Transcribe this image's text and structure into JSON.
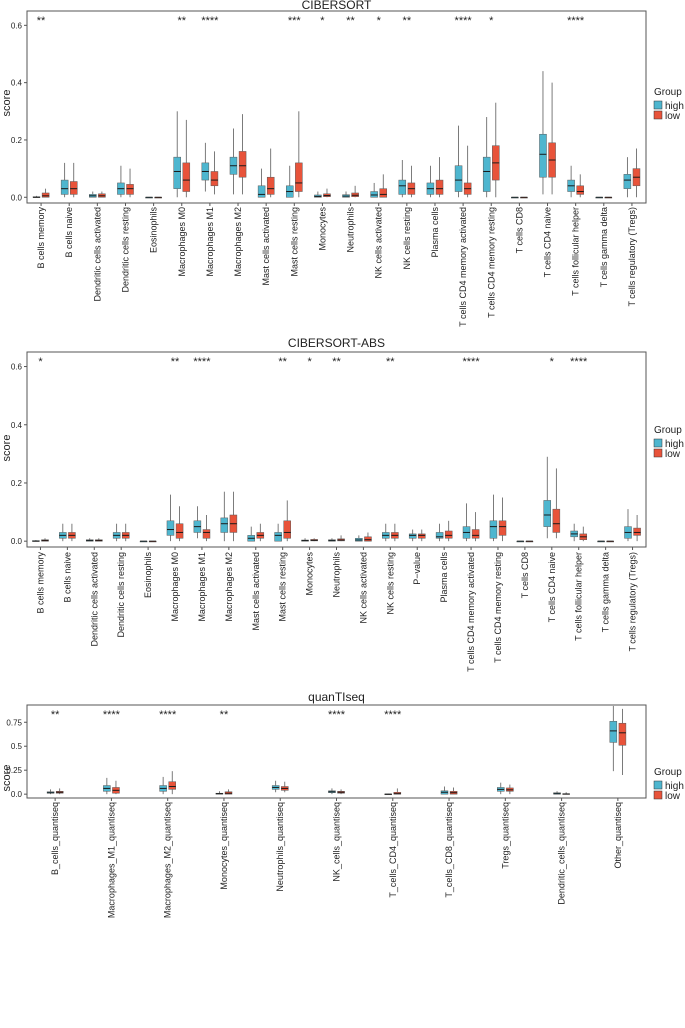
{
  "legend": {
    "title": "Group",
    "entries": [
      "high",
      "low"
    ]
  },
  "colors": {
    "high": "#4eb6cf",
    "low": "#e8533a",
    "whisker": "#5a5a5a",
    "median": "#1a1a1a",
    "frame": "#555555"
  },
  "chart_data": [
    {
      "type": "boxplot",
      "title": "CIBERSORT",
      "ylabel": "score",
      "yticks": [
        "0.0",
        "0.2",
        "0.4",
        "0.6"
      ],
      "ylim": [
        -0.02,
        0.65
      ],
      "categories": [
        "B cells memory",
        "B cells naive",
        "Dendritic cells activated",
        "Dendritic cells resting",
        "Eosinophils",
        "Macrophages M0",
        "Macrophages M1",
        "Macrophages M2",
        "Mast cells activated",
        "Mast cells resting",
        "Monocytes",
        "Neutrophils",
        "NK cells activated",
        "NK cells resting",
        "Plasma cells",
        "T cells CD4 memory activated",
        "T cells CD4 memory resting",
        "T cells CD8",
        "T cells CD4 naive",
        "T cells follicular helper",
        "T cells gamma delta",
        "T cells regulatory (Tregs)"
      ],
      "significance": [
        "**",
        "",
        "",
        "",
        "",
        "**",
        "****",
        "",
        "",
        "***",
        "*",
        "**",
        "*",
        "**",
        "",
        "****",
        "*",
        "",
        "",
        "****",
        "",
        ""
      ],
      "series": [
        {
          "name": "high",
          "boxes": [
            [
              0,
              0,
              0,
              0.002,
              0.005
            ],
            [
              0,
              0.01,
              0.03,
              0.06,
              0.12
            ],
            [
              0,
              0,
              0.005,
              0.01,
              0.02
            ],
            [
              0,
              0.01,
              0.03,
              0.05,
              0.11
            ],
            [
              0,
              0,
              0,
              0,
              0
            ],
            [
              0,
              0.03,
              0.09,
              0.14,
              0.3
            ],
            [
              0.02,
              0.06,
              0.09,
              0.12,
              0.19
            ],
            [
              0.01,
              0.08,
              0.11,
              0.14,
              0.24
            ],
            [
              0,
              0,
              0.01,
              0.04,
              0.1
            ],
            [
              0,
              0,
              0.02,
              0.04,
              0.11
            ],
            [
              0,
              0,
              0.003,
              0.008,
              0.02
            ],
            [
              0,
              0,
              0.004,
              0.009,
              0.02
            ],
            [
              0,
              0,
              0.008,
              0.02,
              0.05
            ],
            [
              0,
              0.01,
              0.04,
              0.06,
              0.13
            ],
            [
              0,
              0.01,
              0.03,
              0.05,
              0.11
            ],
            [
              0,
              0.02,
              0.06,
              0.11,
              0.25
            ],
            [
              0,
              0.02,
              0.09,
              0.14,
              0.28
            ],
            [
              0,
              0,
              0,
              0,
              0
            ],
            [
              0.01,
              0.07,
              0.15,
              0.22,
              0.44
            ],
            [
              0,
              0.02,
              0.04,
              0.06,
              0.11
            ],
            [
              0,
              0,
              0,
              0,
              0
            ],
            [
              0,
              0.03,
              0.06,
              0.08,
              0.14
            ]
          ]
        },
        {
          "name": "low",
          "boxes": [
            [
              0,
              0,
              0.005,
              0.015,
              0.03
            ],
            [
              0,
              0.01,
              0.03,
              0.055,
              0.12
            ],
            [
              0,
              0,
              0.005,
              0.012,
              0.02
            ],
            [
              0,
              0.01,
              0.03,
              0.045,
              0.1
            ],
            [
              0,
              0,
              0,
              0,
              0
            ],
            [
              0,
              0.02,
              0.06,
              0.12,
              0.27
            ],
            [
              0.01,
              0.04,
              0.06,
              0.09,
              0.16
            ],
            [
              0.01,
              0.07,
              0.11,
              0.16,
              0.29
            ],
            [
              0,
              0.01,
              0.03,
              0.07,
              0.17
            ],
            [
              0,
              0.02,
              0.05,
              0.12,
              0.3
            ],
            [
              0,
              0.002,
              0.006,
              0.012,
              0.03
            ],
            [
              0,
              0.002,
              0.007,
              0.015,
              0.04
            ],
            [
              0,
              0,
              0.01,
              0.03,
              0.08
            ],
            [
              0,
              0.01,
              0.03,
              0.05,
              0.11
            ],
            [
              0,
              0.01,
              0.03,
              0.06,
              0.14
            ],
            [
              0,
              0.01,
              0.03,
              0.05,
              0.18
            ],
            [
              0,
              0.06,
              0.12,
              0.18,
              0.33
            ],
            [
              0,
              0,
              0,
              0,
              0
            ],
            [
              0.01,
              0.07,
              0.13,
              0.19,
              0.4
            ],
            [
              0,
              0.01,
              0.02,
              0.04,
              0.08
            ],
            [
              0,
              0,
              0,
              0,
              0
            ],
            [
              0,
              0.04,
              0.07,
              0.1,
              0.17
            ]
          ]
        }
      ]
    },
    {
      "type": "boxplot",
      "title": "CIBERSORT-ABS",
      "ylabel": "score",
      "yticks": [
        "0.0",
        "0.2",
        "0.4",
        "0.6"
      ],
      "ylim": [
        -0.02,
        0.65
      ],
      "categories": [
        "B cells memory",
        "B cells naive",
        "Dendritic cells activated",
        "Dendritic cells resting",
        "Eosinophils",
        "Macrophages M0",
        "Macrophages M1",
        "Macrophages M2",
        "Mast cells activated",
        "Mast cells resting",
        "Monocytes",
        "Neutrophils",
        "NK cells activated",
        "NK cells resting",
        "P−value",
        "Plasma cells",
        "T cells CD4 memory activated",
        "T cells CD4 memory resting",
        "T cells CD8",
        "T cells CD4 naive",
        "T cells follicular helper",
        "T cells gamma delta",
        "T cells regulatory (Tregs)"
      ],
      "significance": [
        "*",
        "",
        "",
        "",
        "",
        "**",
        "****",
        "",
        "",
        "**",
        "*",
        "**",
        "",
        "**",
        "",
        "",
        "****",
        "",
        "",
        "*",
        "****",
        "",
        ""
      ],
      "series": [
        {
          "name": "high",
          "boxes": [
            [
              0,
              0,
              0,
              0.002,
              0.004
            ],
            [
              0,
              0.01,
              0.02,
              0.03,
              0.06
            ],
            [
              0,
              0,
              0.002,
              0.005,
              0.01
            ],
            [
              0,
              0.01,
              0.02,
              0.03,
              0.06
            ],
            [
              0,
              0,
              0,
              0,
              0
            ],
            [
              0,
              0.02,
              0.04,
              0.07,
              0.16
            ],
            [
              0.01,
              0.03,
              0.05,
              0.07,
              0.12
            ],
            [
              0,
              0.03,
              0.06,
              0.08,
              0.17
            ],
            [
              0,
              0,
              0.01,
              0.02,
              0.05
            ],
            [
              0,
              0,
              0.02,
              0.03,
              0.06
            ],
            [
              0,
              0,
              0.002,
              0.004,
              0.01
            ],
            [
              0,
              0,
              0.002,
              0.005,
              0.01
            ],
            [
              0,
              0,
              0.004,
              0.01,
              0.02
            ],
            [
              0,
              0.01,
              0.02,
              0.03,
              0.06
            ],
            [
              0,
              0.01,
              0.02,
              0.025,
              0.04
            ],
            [
              0,
              0.01,
              0.015,
              0.03,
              0.06
            ],
            [
              0,
              0.01,
              0.03,
              0.05,
              0.13
            ],
            [
              0,
              0.01,
              0.05,
              0.07,
              0.16
            ],
            [
              0,
              0,
              0,
              0,
              0
            ],
            [
              0.01,
              0.05,
              0.09,
              0.14,
              0.29
            ],
            [
              0,
              0.015,
              0.025,
              0.035,
              0.06
            ],
            [
              0,
              0,
              0,
              0,
              0
            ],
            [
              0,
              0.01,
              0.03,
              0.05,
              0.11
            ]
          ]
        },
        {
          "name": "low",
          "boxes": [
            [
              0,
              0,
              0.002,
              0.005,
              0.01
            ],
            [
              0,
              0.01,
              0.02,
              0.03,
              0.06
            ],
            [
              0,
              0,
              0.002,
              0.005,
              0.01
            ],
            [
              0,
              0.01,
              0.02,
              0.03,
              0.06
            ],
            [
              0,
              0,
              0,
              0,
              0
            ],
            [
              0,
              0.01,
              0.03,
              0.06,
              0.12
            ],
            [
              0,
              0.01,
              0.03,
              0.04,
              0.09
            ],
            [
              0,
              0.03,
              0.06,
              0.09,
              0.17
            ],
            [
              0,
              0.01,
              0.02,
              0.03,
              0.06
            ],
            [
              0,
              0.01,
              0.03,
              0.07,
              0.14
            ],
            [
              0,
              0.001,
              0.003,
              0.006,
              0.01
            ],
            [
              0,
              0.001,
              0.004,
              0.008,
              0.02
            ],
            [
              0,
              0,
              0.005,
              0.015,
              0.03
            ],
            [
              0,
              0.01,
              0.02,
              0.03,
              0.06
            ],
            [
              0,
              0.01,
              0.02,
              0.025,
              0.04
            ],
            [
              0,
              0.01,
              0.02,
              0.035,
              0.07
            ],
            [
              0,
              0.01,
              0.02,
              0.04,
              0.1
            ],
            [
              0,
              0.02,
              0.05,
              0.07,
              0.15
            ],
            [
              0,
              0,
              0,
              0,
              0
            ],
            [
              0.01,
              0.03,
              0.06,
              0.11,
              0.25
            ],
            [
              0,
              0.005,
              0.015,
              0.025,
              0.05
            ],
            [
              0,
              0,
              0,
              0,
              0
            ],
            [
              0,
              0.02,
              0.03,
              0.045,
              0.09
            ]
          ]
        }
      ]
    },
    {
      "type": "boxplot",
      "title": "quanTIseq",
      "ylabel": "score",
      "yticks": [
        "0.0",
        "0.25",
        "0.5",
        "0.75"
      ],
      "ylim": [
        -0.04,
        0.93
      ],
      "categories": [
        "B_cells_quantiseq",
        "Macrophages_M1_quantiseq",
        "Macrophages_M2_quantiseq",
        "Monocytes_quantiseq",
        "Neutrophils_quantiseq",
        "NK_cells_quantiseq",
        "T_cells_CD4_quantiseq",
        "T_cells_CD8_quantiseq",
        "Tregs_quantiseq",
        "Dendritic_cells_quantiseq",
        "Other_quantiseq"
      ],
      "significance": [
        "**",
        "****",
        "****",
        "**",
        "",
        "****",
        "****",
        "",
        "",
        "",
        ""
      ],
      "series": [
        {
          "name": "high",
          "boxes": [
            [
              0,
              0.01,
              0.015,
              0.025,
              0.05
            ],
            [
              0,
              0.03,
              0.06,
              0.09,
              0.17
            ],
            [
              0,
              0.03,
              0.06,
              0.09,
              0.18
            ],
            [
              0,
              0,
              0.005,
              0.01,
              0.03
            ],
            [
              0.02,
              0.05,
              0.07,
              0.09,
              0.14
            ],
            [
              0,
              0.015,
              0.025,
              0.035,
              0.06
            ],
            [
              0,
              0,
              0,
              0.002,
              0.005
            ],
            [
              0,
              0,
              0.02,
              0.035,
              0.08
            ],
            [
              0,
              0.03,
              0.05,
              0.07,
              0.12
            ],
            [
              0,
              0,
              0.005,
              0.015,
              0.03
            ],
            [
              0.24,
              0.54,
              0.66,
              0.76,
              0.92
            ]
          ]
        },
        {
          "name": "low",
          "boxes": [
            [
              0,
              0.01,
              0.02,
              0.03,
              0.06
            ],
            [
              0,
              0.01,
              0.04,
              0.07,
              0.14
            ],
            [
              0,
              0.05,
              0.08,
              0.13,
              0.24
            ],
            [
              0,
              0,
              0.01,
              0.025,
              0.05
            ],
            [
              0.02,
              0.04,
              0.06,
              0.08,
              0.13
            ],
            [
              0,
              0.01,
              0.02,
              0.03,
              0.05
            ],
            [
              0,
              0,
              0.005,
              0.02,
              0.06
            ],
            [
              0,
              0,
              0.015,
              0.03,
              0.07
            ],
            [
              0,
              0.03,
              0.045,
              0.065,
              0.1
            ],
            [
              0,
              0,
              0.002,
              0.005,
              0.02
            ],
            [
              0.2,
              0.51,
              0.64,
              0.74,
              0.89
            ]
          ]
        }
      ]
    }
  ]
}
